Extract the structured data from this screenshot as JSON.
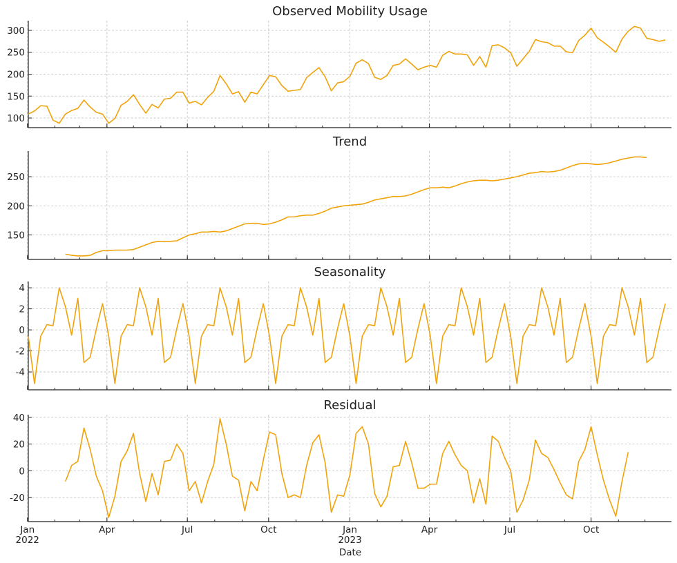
{
  "chart_data": [
    {
      "type": "line",
      "title": "Observed Mobility Usage",
      "ylim": [
        78,
        322
      ],
      "yticks": [
        100,
        150,
        200,
        250,
        300
      ],
      "start": [
        109,
        116,
        128,
        127,
        95,
        88,
        109,
        117,
        122,
        141,
        125,
        113,
        109,
        88,
        99,
        129,
        138,
        153,
        131,
        111,
        131,
        123,
        143,
        145,
        159,
        159,
        134,
        138,
        130,
        147,
        161,
        197,
        178,
        155,
        160,
        136,
        159,
        155,
        176,
        197,
        194,
        174,
        161,
        163,
        165,
        192,
        204,
        215,
        194,
        162,
        180,
        183,
        195,
        225,
        233,
        224,
        193,
        188,
        197,
        220,
        223,
        235,
        223,
        210,
        216,
        220,
        216,
        243,
        252,
        246,
        246,
        244,
        220,
        240,
        216,
        265,
        267,
        260,
        249,
        218,
        235,
        252,
        279,
        274,
        272,
        264,
        264,
        251,
        249,
        277,
        289,
        305,
        283,
        273,
        262,
        250,
        280,
        298,
        309,
        305,
        282,
        279,
        275,
        278
      ],
      "color": "#f0a30a"
    },
    {
      "type": "line",
      "title": "Trend",
      "ylim": [
        108,
        294
      ],
      "yticks": [
        150,
        200,
        250
      ],
      "start": [
        null,
        null,
        null,
        null,
        null,
        null,
        117,
        115,
        114,
        114,
        115,
        120,
        123,
        123,
        124,
        124,
        124,
        125,
        129,
        133,
        137,
        139,
        139,
        139,
        140,
        145,
        150,
        152,
        155,
        155,
        156,
        155,
        157,
        161,
        165,
        169,
        170,
        170,
        168,
        169,
        172,
        176,
        181,
        181,
        183,
        184,
        184,
        187,
        191,
        196,
        198,
        200,
        201,
        202,
        203,
        206,
        210,
        212,
        214,
        216,
        216,
        217,
        220,
        224,
        228,
        231,
        231,
        232,
        231,
        234,
        238,
        241,
        243,
        244,
        244,
        243,
        244,
        246,
        248,
        250,
        253,
        256,
        257,
        259,
        258,
        259,
        261,
        265,
        269,
        272,
        273,
        272,
        271,
        272,
        274,
        277,
        280,
        282,
        284,
        284,
        283,
        null,
        null,
        null,
        null
      ],
      "color": "#f0a30a"
    },
    {
      "type": "line",
      "title": "Seasonality",
      "ylim": [
        -5.7,
        4.6
      ],
      "yticks": [
        -4,
        -2,
        0,
        2,
        4
      ],
      "start": [
        -0.6,
        -5.1,
        -0.6,
        0.5,
        0.4,
        4.0,
        2.2,
        -0.5,
        3.0,
        -3.1,
        -2.6,
        0.1,
        2.5,
        -0.6,
        -5.1,
        -0.6,
        0.5,
        0.4,
        4.0,
        2.2,
        -0.5,
        3.0,
        -3.1,
        -2.6,
        0.1,
        2.5,
        -0.6,
        -5.1,
        -0.6,
        0.5,
        0.4,
        4.0,
        2.2,
        -0.5,
        3.0,
        -3.1,
        -2.6,
        0.1,
        2.5,
        -0.6,
        -5.1,
        -0.6,
        0.5,
        0.4,
        4.0,
        2.2,
        -0.5,
        3.0,
        -3.1,
        -2.6,
        0.1,
        2.5,
        -0.6,
        -5.1,
        -0.6,
        0.5,
        0.4,
        4.0,
        2.2,
        -0.5,
        3.0,
        -3.1,
        -2.6,
        0.1,
        2.5,
        -0.6,
        -5.1,
        -0.6,
        0.5,
        0.4,
        4.0,
        2.2,
        -0.5,
        3.0,
        -3.1,
        -2.6,
        0.1,
        2.5,
        -0.6,
        -5.1,
        -0.6,
        0.5,
        0.4,
        4.0,
        2.2,
        -0.5,
        3.0,
        -3.1,
        -2.6,
        0.1,
        2.5,
        -0.6,
        -5.1,
        -0.6,
        0.5,
        0.4,
        4.0,
        2.2,
        -0.5,
        3.0,
        -3.1,
        -2.6,
        0.1,
        2.5
      ],
      "color": "#f0a30a"
    },
    {
      "type": "line",
      "title": "Residual",
      "ylim": [
        -38,
        42
      ],
      "yticks": [
        -20,
        0,
        20,
        40
      ],
      "start": [
        null,
        null,
        null,
        null,
        null,
        null,
        -8,
        4,
        7,
        32,
        16,
        -4,
        -15,
        -35,
        -19,
        7,
        15,
        28,
        -2,
        -23,
        -2,
        -18,
        7,
        8,
        20,
        13,
        -15,
        -8,
        -24,
        -8,
        5,
        39,
        20,
        -4,
        -7,
        -30,
        -8,
        -15,
        8,
        29,
        27,
        -2,
        -20,
        -18,
        -20,
        4,
        21,
        27,
        6,
        -31,
        -18,
        -19,
        -3,
        28,
        33,
        20,
        -17,
        -27,
        -19,
        3,
        4,
        22,
        6,
        -13,
        -13,
        -10,
        -10,
        13,
        22,
        12,
        4,
        0,
        -24,
        -6,
        -25,
        26,
        22,
        10,
        0,
        -31,
        -22,
        -7,
        23,
        13,
        10,
        1,
        -9,
        -18,
        -21,
        7,
        16,
        33,
        12,
        -7,
        -22,
        -34,
        -8,
        14,
        null,
        null,
        null,
        null,
        null,
        null,
        null
      ],
      "color": "#f0a30a"
    }
  ],
  "x_axis": {
    "label": "Date",
    "ticks": [
      {
        "date": "2022-01-01",
        "line1": "Jan",
        "line2": "2022"
      },
      {
        "date": "2022-04-01",
        "line1": "Apr",
        "line2": ""
      },
      {
        "date": "2022-07-01",
        "line1": "Jul",
        "line2": ""
      },
      {
        "date": "2022-10-01",
        "line1": "Oct",
        "line2": ""
      },
      {
        "date": "2023-01-01",
        "line1": "Jan",
        "line2": "2023"
      },
      {
        "date": "2023-04-01",
        "line1": "Apr",
        "line2": ""
      },
      {
        "date": "2023-07-01",
        "line1": "Jul",
        "line2": ""
      },
      {
        "date": "2023-10-01",
        "line1": "Oct",
        "line2": ""
      }
    ],
    "range": [
      "2022-01-02",
      "2023-12-31"
    ],
    "frequency": "weekly",
    "grid": true
  }
}
